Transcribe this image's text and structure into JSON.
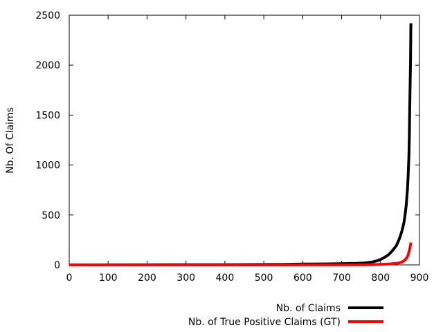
{
  "chart_data": {
    "type": "line",
    "title": "",
    "xlabel": "",
    "ylabel": "Nb. Of Claims",
    "xlim": [
      0,
      900
    ],
    "ylim": [
      0,
      2500
    ],
    "xticks": [
      0,
      100,
      200,
      300,
      400,
      500,
      600,
      700,
      800,
      900
    ],
    "yticks": [
      0,
      500,
      1000,
      1500,
      2000,
      2500
    ],
    "grid": false,
    "legend": "bottom-right",
    "series": [
      {
        "name": "Nb. of Claims",
        "color": "#000000",
        "x": [
          0,
          200,
          400,
          550,
          600,
          650,
          700,
          740,
          760,
          780,
          790,
          800,
          810,
          820,
          830,
          840,
          845,
          850,
          855,
          860,
          863,
          866,
          869,
          871,
          873,
          874,
          875,
          876,
          877,
          878
        ],
        "y": [
          1,
          2,
          3,
          5,
          8,
          10,
          12,
          16,
          20,
          30,
          40,
          55,
          75,
          100,
          140,
          190,
          230,
          280,
          340,
          420,
          500,
          600,
          750,
          900,
          1100,
          1300,
          1550,
          1800,
          2050,
          2420
        ]
      },
      {
        "name": "Nb. of True Positive Claims (GT)",
        "color": "#ff0000",
        "x": [
          0,
          200,
          400,
          600,
          700,
          760,
          780,
          800,
          820,
          840,
          850,
          855,
          860,
          864,
          868,
          871,
          873,
          875,
          876,
          877,
          878
        ],
        "y": [
          0,
          0,
          0,
          1,
          1,
          2,
          3,
          5,
          8,
          15,
          22,
          30,
          40,
          55,
          75,
          100,
          130,
          160,
          180,
          200,
          225
        ]
      }
    ]
  }
}
